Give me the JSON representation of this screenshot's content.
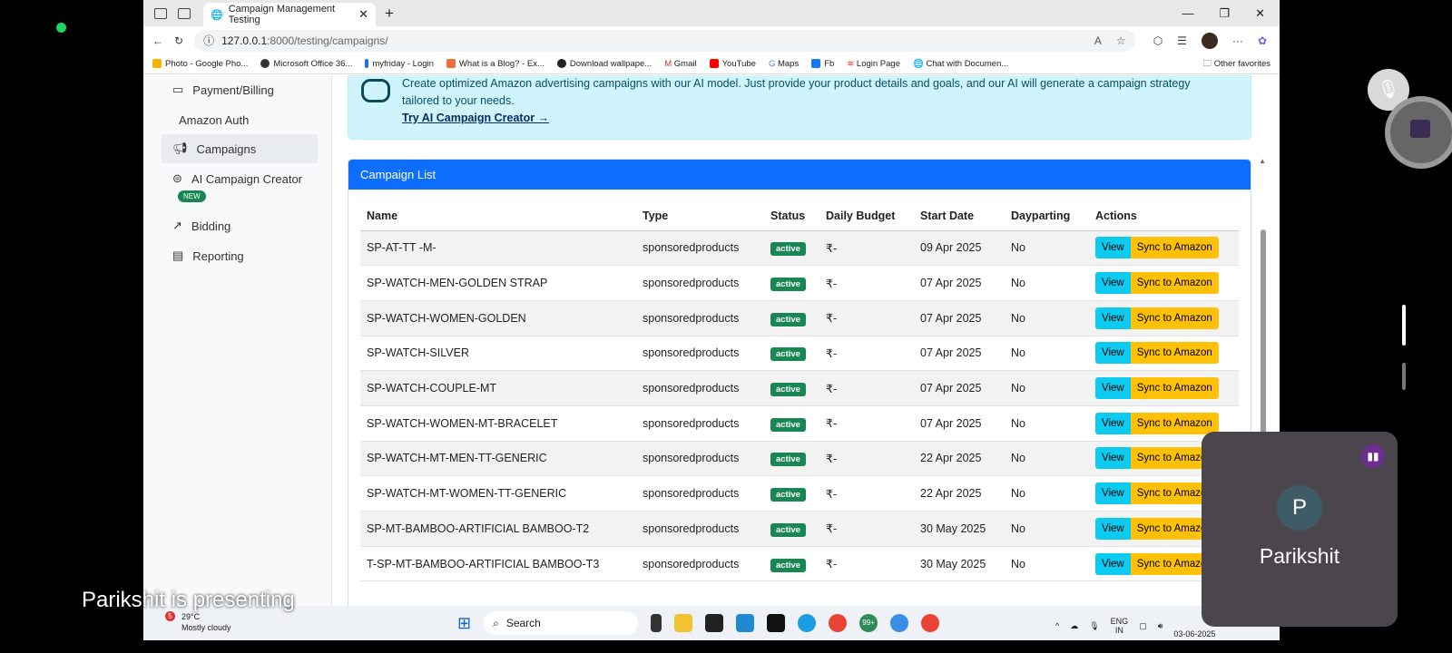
{
  "browser": {
    "tab_title": "Campaign Management Testing",
    "url_host": "127.0.0.1",
    "url_rest": ":8000/testing/campaigns/",
    "bookmarks": [
      "Photo - Google Pho...",
      "Microsoft Office 36...",
      "myfriday - Login",
      "What is a Blog? - Ex...",
      "Download wallpape...",
      "Gmail",
      "YouTube",
      "Maps",
      "Fb",
      "Login Page",
      "Chat with Documen..."
    ],
    "other_favorites": "Other favorites"
  },
  "sidebar": {
    "items": [
      {
        "label": "Payment/Billing"
      },
      {
        "label": "Amazon Auth"
      },
      {
        "label": "Campaigns"
      },
      {
        "label": "AI Campaign Creator"
      },
      {
        "label": "Bidding"
      },
      {
        "label": "Reporting"
      }
    ],
    "new_badge": "NEW"
  },
  "banner": {
    "text": "Create optimized Amazon advertising campaigns with our AI model. Just provide your product details and goals, and our AI will generate a campaign strategy tailored to your needs.",
    "link": "Try AI Campaign Creator →"
  },
  "card": {
    "title": "Campaign List",
    "columns": [
      "Name",
      "Type",
      "Status",
      "Daily Budget",
      "Start Date",
      "Dayparting",
      "Actions"
    ],
    "view_label": "View",
    "sync_label": "Sync to Amazon",
    "rows": [
      {
        "name": "SP-AT-TT -M-",
        "type": "sponsoredproducts",
        "status": "active",
        "budget": "₹-",
        "start": "09 Apr 2025",
        "dayparting": "No"
      },
      {
        "name": "SP-WATCH-MEN-GOLDEN STRAP",
        "type": "sponsoredproducts",
        "status": "active",
        "budget": "₹-",
        "start": "07 Apr 2025",
        "dayparting": "No"
      },
      {
        "name": "SP-WATCH-WOMEN-GOLDEN",
        "type": "sponsoredproducts",
        "status": "active",
        "budget": "₹-",
        "start": "07 Apr 2025",
        "dayparting": "No"
      },
      {
        "name": "SP-WATCH-SILVER",
        "type": "sponsoredproducts",
        "status": "active",
        "budget": "₹-",
        "start": "07 Apr 2025",
        "dayparting": "No"
      },
      {
        "name": "SP-WATCH-COUPLE-MT",
        "type": "sponsoredproducts",
        "status": "active",
        "budget": "₹-",
        "start": "07 Apr 2025",
        "dayparting": "No"
      },
      {
        "name": "SP-WATCH-WOMEN-MT-BRACELET",
        "type": "sponsoredproducts",
        "status": "active",
        "budget": "₹-",
        "start": "07 Apr 2025",
        "dayparting": "No"
      },
      {
        "name": "SP-WATCH-MT-MEN-TT-GENERIC",
        "type": "sponsoredproducts",
        "status": "active",
        "budget": "₹-",
        "start": "22 Apr 2025",
        "dayparting": "No"
      },
      {
        "name": "SP-WATCH-MT-WOMEN-TT-GENERIC",
        "type": "sponsoredproducts",
        "status": "active",
        "budget": "₹-",
        "start": "22 Apr 2025",
        "dayparting": "No"
      },
      {
        "name": "SP-MT-BAMBOO-ARTIFICIAL BAMBOO-T2",
        "type": "sponsoredproducts",
        "status": "active",
        "budget": "₹-",
        "start": "30 May 2025",
        "dayparting": "No"
      },
      {
        "name": "T-SP-MT-BAMBOO-ARTIFICIAL BAMBOO-T3",
        "type": "sponsoredproducts",
        "status": "active",
        "budget": "₹-",
        "start": "30 May 2025",
        "dayparting": "No"
      }
    ]
  },
  "taskbar": {
    "weather_badge": "5",
    "temp": "29°C",
    "weather": "Mostly cloudy",
    "search": "Search",
    "notif": "99+",
    "lang": "ENG",
    "region": "IN",
    "date": "03-06-2025"
  },
  "meeting": {
    "presenting": "Parikshit is presenting",
    "participant": "Parikshit",
    "initial": "P"
  },
  "colors": {
    "primary": "#0d6efd",
    "info": "#0dcaf0",
    "warning": "#ffc107",
    "success": "#198754",
    "banner": "#cff4fc"
  }
}
